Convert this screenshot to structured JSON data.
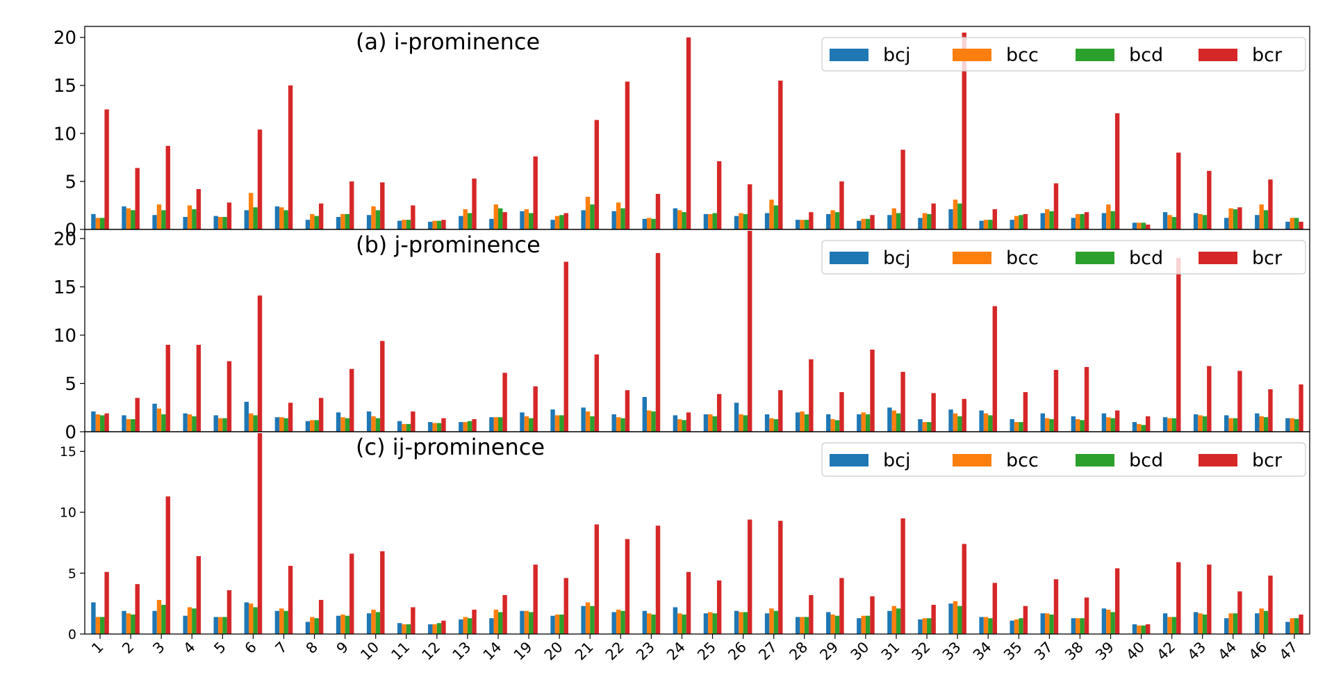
{
  "categories": [
    "1",
    "2",
    "3",
    "4",
    "5",
    "6",
    "7",
    "8",
    "9",
    "10",
    "11",
    "12",
    "13",
    "14",
    "19",
    "20",
    "21",
    "22",
    "23",
    "24",
    "25",
    "26",
    "27",
    "28",
    "29",
    "30",
    "31",
    "32",
    "33",
    "34",
    "35",
    "37",
    "38",
    "39",
    "40",
    "42",
    "43",
    "44",
    "46",
    "47"
  ],
  "series_names": [
    "bcj",
    "bcc",
    "bcd",
    "bcr"
  ],
  "colors": {
    "bcj": "#1f77b4",
    "bcc": "#ff7f0e",
    "bcd": "#2ca02c",
    "bcr": "#d62728"
  },
  "chart_data": [
    {
      "type": "bar",
      "title": "(a) i-prominence",
      "xlabel": "",
      "ylabel": "",
      "ylim": [
        0,
        21
      ],
      "yticks": [
        0,
        5,
        10,
        15,
        20
      ],
      "legend": "top-right",
      "series": [
        {
          "name": "bcj",
          "values": [
            1.6,
            2.4,
            1.5,
            1.3,
            1.4,
            2.0,
            2.4,
            1.0,
            1.3,
            1.5,
            0.9,
            0.8,
            1.4,
            1.1,
            1.9,
            1.0,
            2.0,
            1.9,
            1.1,
            2.2,
            1.6,
            1.4,
            1.7,
            1.0,
            1.6,
            0.9,
            1.5,
            1.2,
            2.1,
            0.9,
            1.0,
            1.7,
            1.2,
            1.7,
            0.7,
            1.8,
            1.7,
            1.2,
            1.5,
            0.8
          ]
        },
        {
          "name": "bcc",
          "values": [
            1.2,
            2.2,
            2.6,
            2.5,
            1.3,
            3.8,
            2.3,
            1.6,
            1.6,
            2.4,
            1.0,
            0.9,
            2.1,
            2.6,
            2.1,
            1.4,
            3.4,
            2.8,
            1.2,
            2.0,
            1.6,
            1.7,
            3.1,
            1.0,
            2.0,
            1.1,
            2.2,
            1.7,
            3.1,
            1.0,
            1.4,
            2.1,
            1.6,
            2.6,
            0.7,
            1.5,
            1.6,
            2.2,
            2.6,
            1.2
          ]
        },
        {
          "name": "bcd",
          "values": [
            1.2,
            2.0,
            2.0,
            2.1,
            1.3,
            2.3,
            2.0,
            1.4,
            1.6,
            2.0,
            1.0,
            0.9,
            1.7,
            2.2,
            1.7,
            1.5,
            2.6,
            2.2,
            1.1,
            1.8,
            1.7,
            1.6,
            2.5,
            1.0,
            1.8,
            1.1,
            1.7,
            1.6,
            2.7,
            1.0,
            1.5,
            1.9,
            1.6,
            1.9,
            0.7,
            1.3,
            1.5,
            2.1,
            2.0,
            1.2
          ]
        },
        {
          "name": "bcr",
          "values": [
            12.5,
            6.4,
            8.7,
            4.2,
            2.8,
            10.4,
            15.0,
            2.7,
            5.0,
            4.9,
            2.5,
            1.0,
            5.3,
            1.8,
            7.6,
            1.7,
            11.4,
            15.4,
            3.7,
            20.0,
            7.1,
            4.7,
            15.5,
            1.8,
            5.0,
            1.5,
            8.3,
            2.7,
            20.5,
            2.1,
            1.6,
            4.8,
            1.8,
            12.1,
            0.5,
            8.0,
            6.1,
            2.3,
            5.2,
            0.8
          ]
        }
      ]
    },
    {
      "type": "bar",
      "title": "(b) j-prominence",
      "xlabel": "",
      "ylabel": "",
      "ylim": [
        0,
        20.8
      ],
      "yticks": [
        0,
        5,
        10,
        15,
        20
      ],
      "legend": "top-right",
      "series": [
        {
          "name": "bcj",
          "values": [
            2.1,
            1.7,
            2.9,
            1.9,
            1.7,
            3.1,
            1.5,
            1.1,
            2.0,
            2.1,
            1.1,
            1.0,
            1.0,
            1.5,
            2.0,
            2.3,
            2.5,
            1.8,
            3.6,
            1.7,
            1.8,
            3.0,
            1.8,
            2.0,
            1.8,
            1.8,
            2.5,
            1.3,
            2.3,
            2.2,
            1.3,
            1.9,
            1.6,
            1.9,
            1.0,
            1.5,
            1.8,
            1.7,
            1.9,
            1.4
          ]
        },
        {
          "name": "bcc",
          "values": [
            1.8,
            1.3,
            2.4,
            1.8,
            1.4,
            1.9,
            1.5,
            1.2,
            1.5,
            1.6,
            0.8,
            0.9,
            1.0,
            1.5,
            1.6,
            1.7,
            2.1,
            1.5,
            2.2,
            1.3,
            1.8,
            1.8,
            1.4,
            2.1,
            1.3,
            2.0,
            2.2,
            1.0,
            1.9,
            1.9,
            1.0,
            1.4,
            1.3,
            1.5,
            0.8,
            1.4,
            1.7,
            1.4,
            1.6,
            1.4
          ]
        },
        {
          "name": "bcd",
          "values": [
            1.7,
            1.3,
            1.8,
            1.6,
            1.4,
            1.7,
            1.4,
            1.2,
            1.4,
            1.4,
            0.8,
            0.9,
            1.1,
            1.5,
            1.4,
            1.7,
            1.6,
            1.4,
            2.1,
            1.2,
            1.6,
            1.7,
            1.3,
            1.8,
            1.2,
            1.8,
            1.9,
            1.0,
            1.6,
            1.7,
            1.0,
            1.3,
            1.2,
            1.4,
            0.7,
            1.4,
            1.6,
            1.4,
            1.5,
            1.3
          ]
        },
        {
          "name": "bcr",
          "values": [
            1.9,
            3.5,
            9.0,
            9.0,
            7.3,
            14.1,
            3.0,
            3.5,
            6.5,
            9.4,
            2.1,
            1.4,
            1.3,
            6.1,
            4.7,
            17.6,
            8.0,
            4.3,
            18.5,
            2.0,
            3.9,
            20.8,
            4.3,
            7.5,
            4.1,
            8.5,
            6.2,
            4.0,
            3.4,
            13.0,
            4.1,
            6.4,
            6.7,
            2.2,
            1.6,
            18.0,
            6.8,
            6.3,
            4.4,
            4.9
          ]
        }
      ]
    },
    {
      "type": "bar",
      "title": "(c) ij-prominence",
      "xlabel": "",
      "ylabel": "",
      "ylim": [
        0,
        16.5
      ],
      "yticks": [
        0,
        5,
        10,
        15
      ],
      "legend": "top-right",
      "series": [
        {
          "name": "bcj",
          "values": [
            2.6,
            1.9,
            1.9,
            1.5,
            1.4,
            2.6,
            1.9,
            1.0,
            1.5,
            1.7,
            0.9,
            0.8,
            1.2,
            1.3,
            1.9,
            1.5,
            2.3,
            1.8,
            1.9,
            2.2,
            1.7,
            1.9,
            1.7,
            1.4,
            1.8,
            1.3,
            1.9,
            1.2,
            2.5,
            1.4,
            1.1,
            1.7,
            1.3,
            2.1,
            0.8,
            1.7,
            1.8,
            1.3,
            1.7,
            1.0
          ]
        },
        {
          "name": "bcc",
          "values": [
            1.4,
            1.7,
            2.8,
            2.2,
            1.4,
            2.5,
            2.1,
            1.4,
            1.6,
            2.0,
            0.8,
            0.8,
            1.4,
            2.0,
            1.9,
            1.6,
            2.6,
            2.0,
            1.7,
            1.7,
            1.8,
            1.8,
            2.1,
            1.4,
            1.6,
            1.5,
            2.3,
            1.3,
            2.7,
            1.4,
            1.2,
            1.7,
            1.3,
            2.0,
            0.7,
            1.4,
            1.7,
            1.7,
            2.1,
            1.3
          ]
        },
        {
          "name": "bcd",
          "values": [
            1.4,
            1.6,
            2.4,
            2.1,
            1.4,
            2.2,
            1.9,
            1.3,
            1.5,
            1.8,
            0.8,
            0.9,
            1.3,
            1.8,
            1.8,
            1.6,
            2.3,
            1.9,
            1.6,
            1.6,
            1.7,
            1.8,
            1.9,
            1.4,
            1.5,
            1.5,
            2.1,
            1.3,
            2.3,
            1.3,
            1.3,
            1.6,
            1.3,
            1.8,
            0.7,
            1.4,
            1.6,
            1.7,
            1.9,
            1.3
          ]
        },
        {
          "name": "bcr",
          "values": [
            5.1,
            4.1,
            11.3,
            6.4,
            3.6,
            16.5,
            5.6,
            2.8,
            6.6,
            6.8,
            2.2,
            1.1,
            2.0,
            3.2,
            5.7,
            4.6,
            9.0,
            7.8,
            8.9,
            5.1,
            4.4,
            9.4,
            9.3,
            3.2,
            4.6,
            3.1,
            9.5,
            2.4,
            7.4,
            4.2,
            2.3,
            4.5,
            3.0,
            5.4,
            0.8,
            5.9,
            5.7,
            3.5,
            4.8,
            1.6
          ]
        }
      ]
    }
  ]
}
